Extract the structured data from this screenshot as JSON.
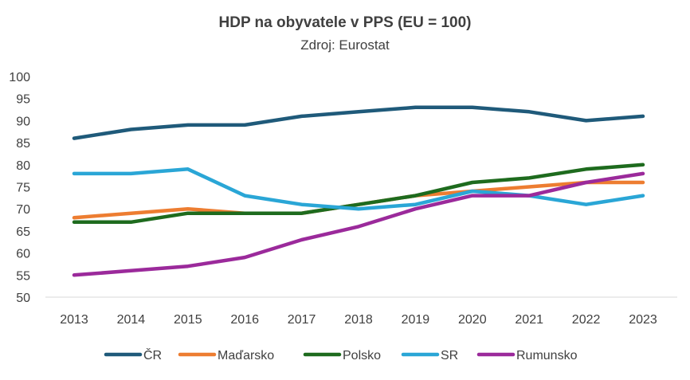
{
  "chart_data": {
    "type": "line",
    "title": "HDP na obyvatele v PPS (EU = 100)",
    "subtitle": "Zdroj: Eurostat",
    "xlabel": "",
    "ylabel": "",
    "categories": [
      "2013",
      "2014",
      "2015",
      "2016",
      "2017",
      "2018",
      "2019",
      "2020",
      "2021",
      "2022",
      "2023"
    ],
    "ylim": [
      50,
      100
    ],
    "yticks": [
      50,
      55,
      60,
      65,
      70,
      75,
      80,
      85,
      90,
      95,
      100
    ],
    "grid": false,
    "legend_position": "bottom",
    "series": [
      {
        "name": "ČR",
        "color": "#1f5a7a",
        "values": [
          86,
          88,
          89,
          89,
          91,
          92,
          93,
          93,
          92,
          90,
          91
        ]
      },
      {
        "name": "Maďarsko",
        "color": "#ed7d31",
        "values": [
          68,
          69,
          70,
          69,
          69,
          71,
          73,
          74,
          75,
          76,
          76
        ]
      },
      {
        "name": "Polsko",
        "color": "#1e6b1e",
        "values": [
          67,
          67,
          69,
          69,
          69,
          71,
          73,
          76,
          77,
          79,
          80
        ]
      },
      {
        "name": "SR",
        "color": "#2aa6d6",
        "values": [
          78,
          78,
          79,
          73,
          71,
          70,
          71,
          74,
          73,
          71,
          73
        ]
      },
      {
        "name": "Rumunsko",
        "color": "#9b2a9b",
        "values": [
          55,
          56,
          57,
          59,
          63,
          66,
          70,
          73,
          73,
          76,
          78
        ]
      }
    ]
  }
}
